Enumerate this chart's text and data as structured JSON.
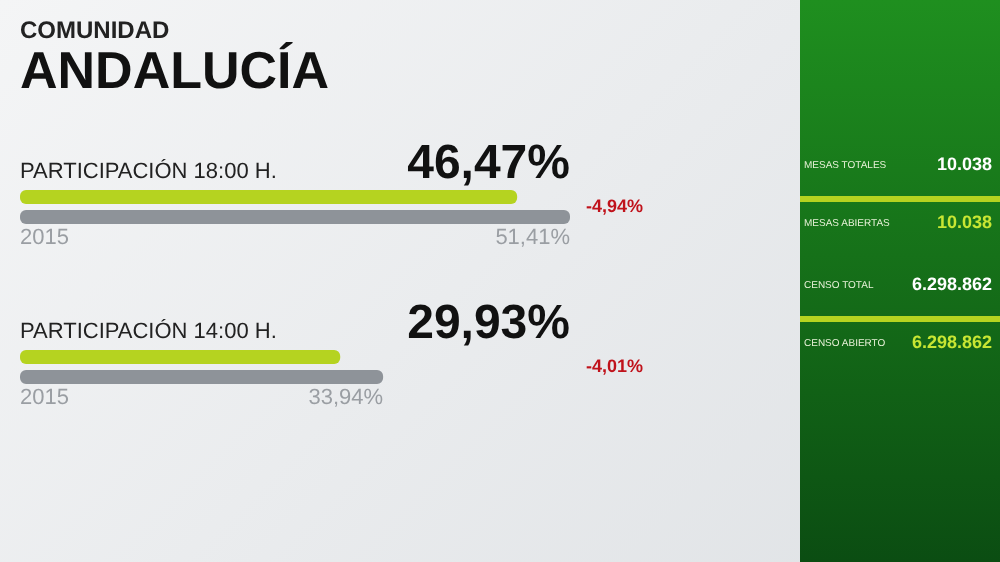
{
  "chart_data": [
    {
      "type": "bar",
      "orientation": "horizontal",
      "subtitle": "COMUNIDAD",
      "title": "ANDALUCÍA",
      "categories": [
        "PARTICIPACIÓN 18:00 H.",
        "PARTICIPACIÓN 14:00 H."
      ],
      "series": [
        {
          "color": "#b5d320",
          "values": [
            46.47,
            29.93
          ],
          "value_labels": [
            "46,47%",
            "29,93%"
          ]
        },
        {
          "name": "2015",
          "color": "#8e9399",
          "values": [
            51.41,
            33.94
          ],
          "value_labels": [
            "51,41%",
            "33,94%"
          ]
        }
      ],
      "xlim": [
        0,
        51.41
      ],
      "tick_labels": "y",
      "annotations": [
        "-4,94%",
        "-4,01%"
      ]
    },
    {
      "type": "other",
      "annotations": [
        "MESAS TOTALES",
        "10.038",
        "MESAS ABIERTAS",
        "10.038",
        "CENSO TOTAL",
        "6.298.862",
        "CENSO ABIERTO",
        "6.298.862"
      ]
    }
  ]
}
